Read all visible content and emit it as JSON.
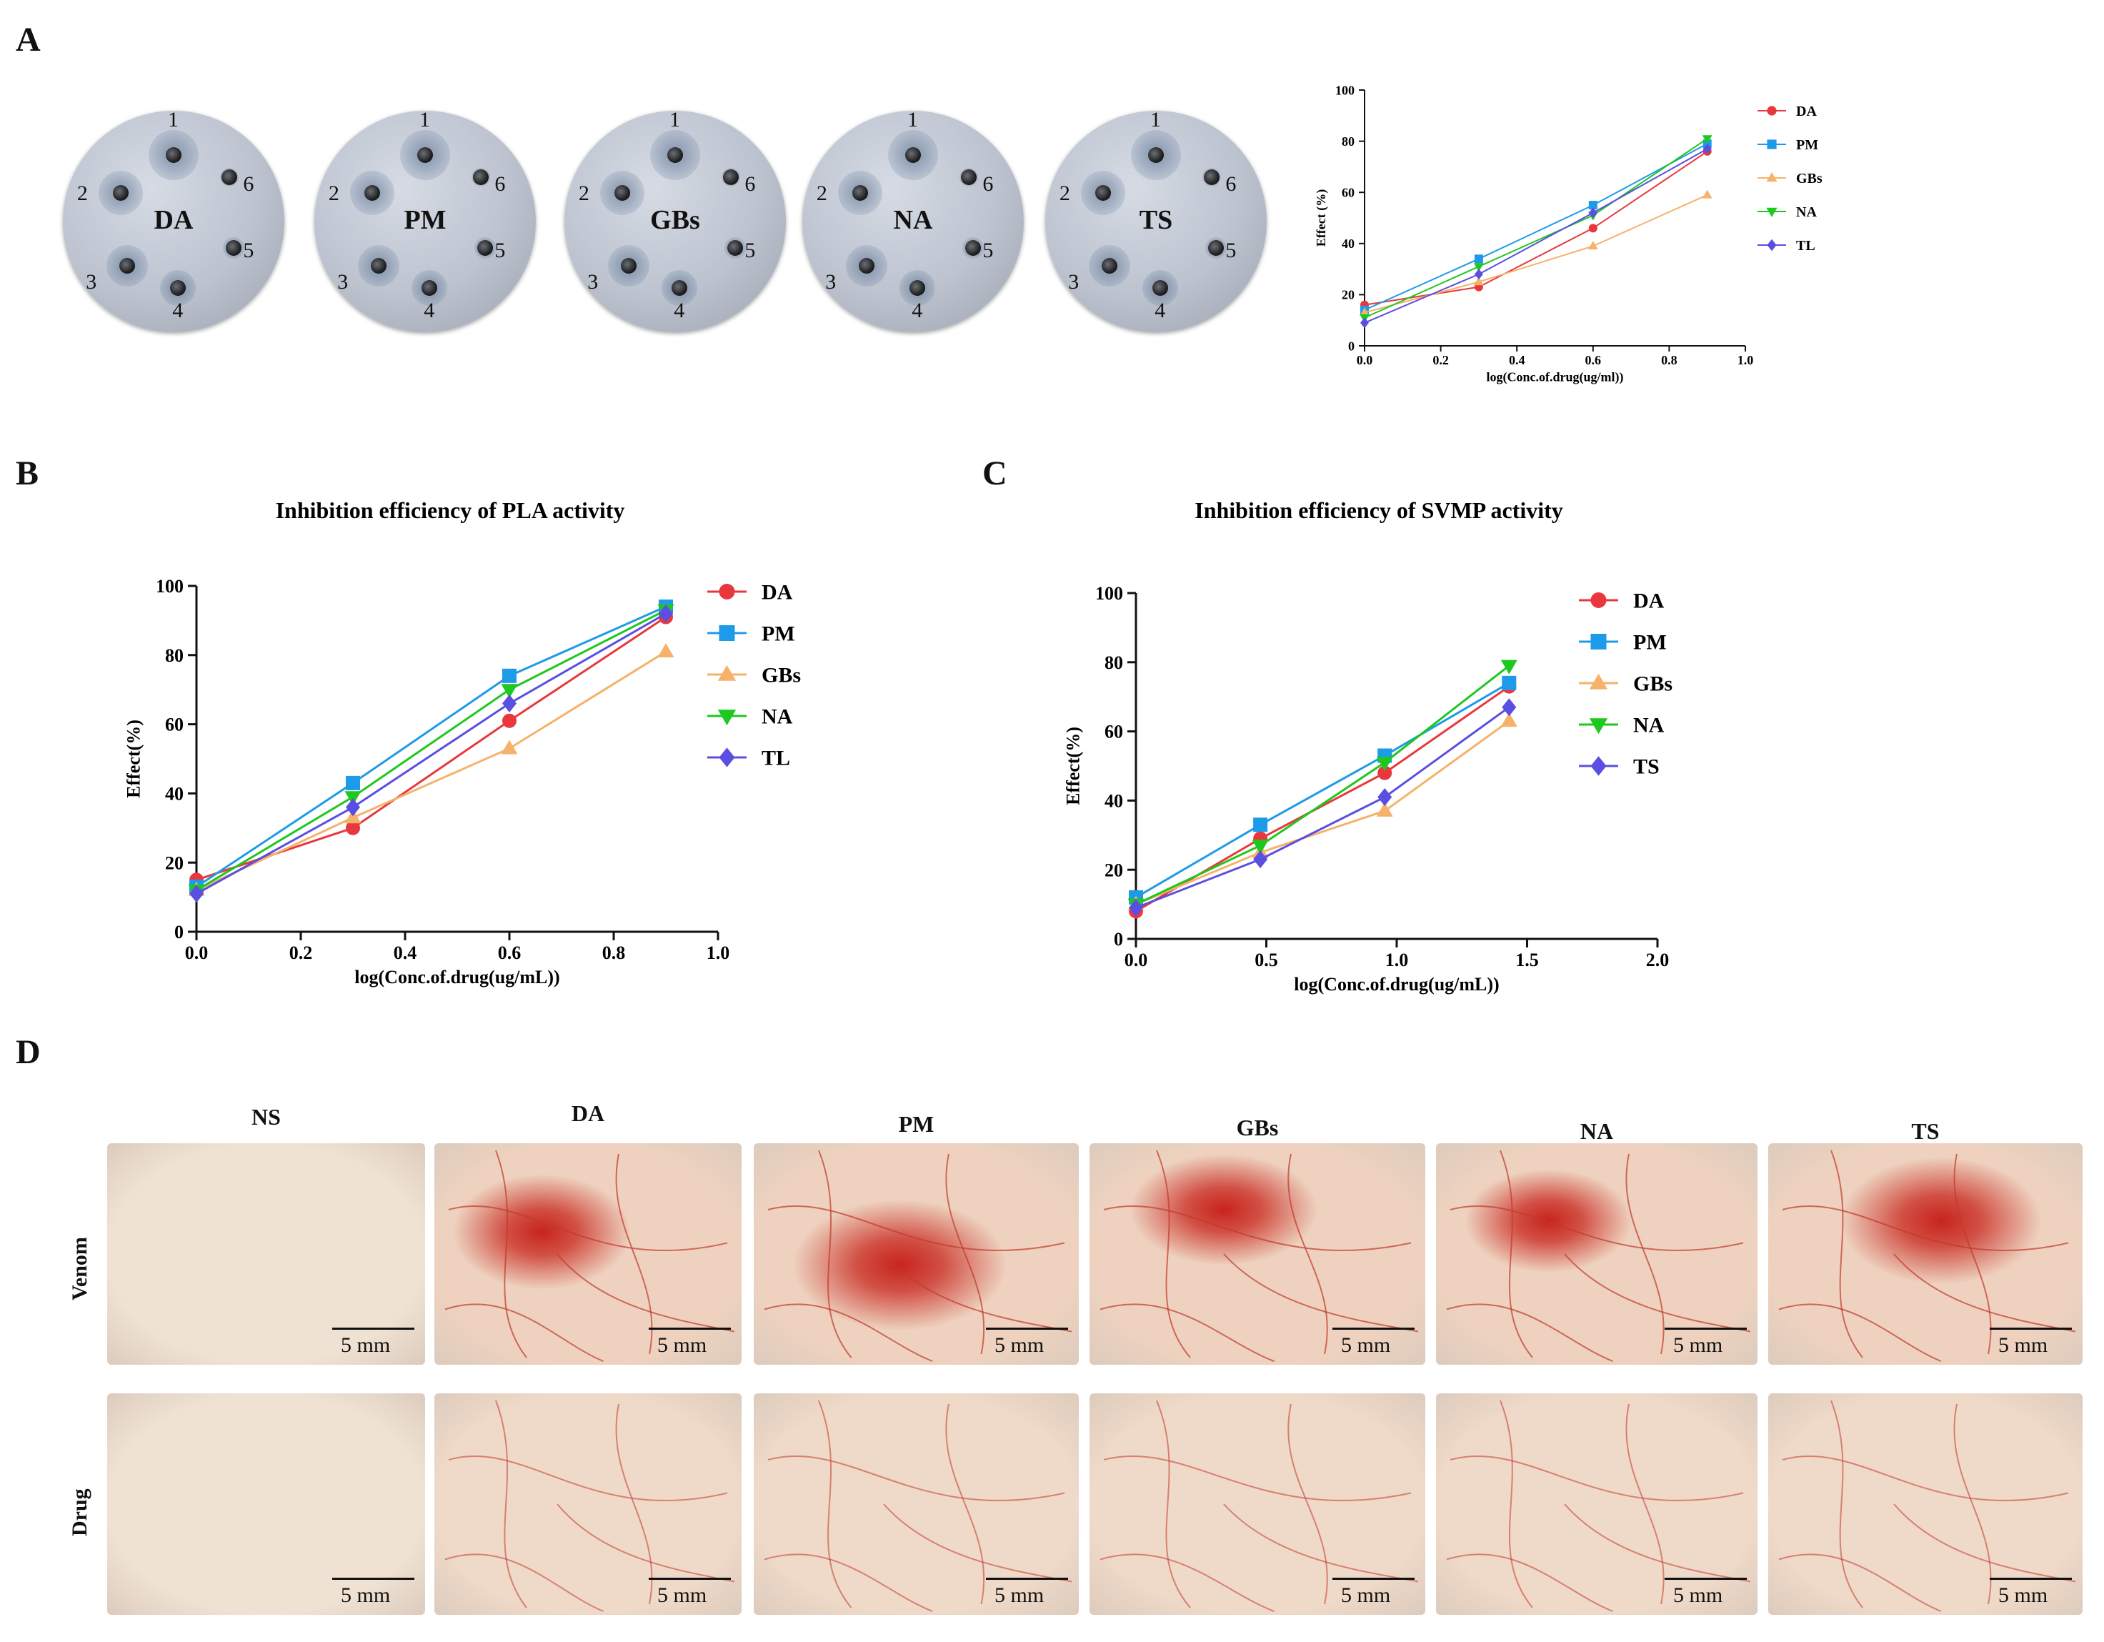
{
  "panels": {
    "a": "A",
    "b": "B",
    "c": "C",
    "d": "D"
  },
  "plates": [
    {
      "label": "DA",
      "wells": [
        "1",
        "2",
        "3",
        "4",
        "5",
        "6"
      ]
    },
    {
      "label": "PM",
      "wells": [
        "1",
        "2",
        "3",
        "4",
        "5",
        "6"
      ]
    },
    {
      "label": "GBs",
      "wells": [
        "1",
        "2",
        "3",
        "4",
        "5",
        "6"
      ]
    },
    {
      "label": "NA",
      "wells": [
        "1",
        "2",
        "3",
        "4",
        "5",
        "6"
      ]
    },
    {
      "label": "TS",
      "wells": [
        "1",
        "2",
        "3",
        "4",
        "5",
        "6"
      ]
    }
  ],
  "chart_data": [
    {
      "id": "A",
      "type": "line",
      "title": "",
      "xlabel": "log(Conc.of.drug(ug/ml))",
      "ylabel": "Effect (%)",
      "xlim": [
        0,
        1.0
      ],
      "ylim": [
        0,
        100
      ],
      "xticks": [
        "0.0",
        "0.2",
        "0.4",
        "0.6",
        "0.8",
        "1.0"
      ],
      "yticks": [
        "0",
        "20",
        "40",
        "60",
        "80",
        "100"
      ],
      "legend_position": "right",
      "x": [
        0,
        0.3,
        0.6,
        0.9
      ],
      "series": [
        {
          "name": "DA",
          "color": "#e8383d",
          "marker": "circle",
          "values": [
            16,
            23,
            46,
            76
          ]
        },
        {
          "name": "PM",
          "color": "#1e9be8",
          "marker": "square",
          "values": [
            14,
            34,
            55,
            79
          ]
        },
        {
          "name": "GBs",
          "color": "#f6b26b",
          "marker": "triangle",
          "values": [
            13,
            25,
            39,
            59
          ]
        },
        {
          "name": "NA",
          "color": "#1ec81e",
          "marker": "tri-down",
          "values": [
            11,
            31,
            51,
            81
          ]
        },
        {
          "name": "TL",
          "color": "#5a4fe0",
          "marker": "diamond",
          "values": [
            9,
            28,
            52,
            77
          ]
        }
      ]
    },
    {
      "id": "B",
      "type": "line",
      "title": "Inhibition efficiency of PLA activity",
      "xlabel": "log(Conc.of.drug(ug/mL))",
      "ylabel": "Effect(%)",
      "xlim": [
        0,
        1.0
      ],
      "ylim": [
        0,
        100
      ],
      "xticks": [
        "0.0",
        "0.2",
        "0.4",
        "0.6",
        "0.8",
        "1.0"
      ],
      "yticks": [
        "0",
        "20",
        "40",
        "60",
        "80",
        "100"
      ],
      "legend_position": "right",
      "x": [
        0,
        0.3,
        0.6,
        0.9
      ],
      "series": [
        {
          "name": "DA",
          "color": "#e8383d",
          "marker": "circle",
          "values": [
            15,
            30,
            61,
            91
          ]
        },
        {
          "name": "PM",
          "color": "#1e9be8",
          "marker": "square",
          "values": [
            13,
            43,
            74,
            94
          ]
        },
        {
          "name": "GBs",
          "color": "#f6b26b",
          "marker": "triangle",
          "values": [
            12,
            33,
            53,
            81
          ]
        },
        {
          "name": "NA",
          "color": "#1ec81e",
          "marker": "tri-down",
          "values": [
            12,
            39,
            70,
            93
          ]
        },
        {
          "name": "TL",
          "color": "#5a4fe0",
          "marker": "diamond",
          "values": [
            11,
            36,
            66,
            92
          ]
        }
      ]
    },
    {
      "id": "C",
      "type": "line",
      "title": "Inhibition efficiency of SVMP activity",
      "xlabel": "log(Conc.of.drug(ug/mL))",
      "ylabel": "Effect(%)",
      "xlim": [
        0,
        2.0
      ],
      "ylim": [
        0,
        100
      ],
      "xticks": [
        "0.0",
        "0.5",
        "1.0",
        "1.5",
        "2.0"
      ],
      "yticks": [
        "0",
        "20",
        "40",
        "60",
        "80",
        "100"
      ],
      "legend_position": "right",
      "x": [
        0,
        0.477,
        0.954,
        1.431
      ],
      "series": [
        {
          "name": "DA",
          "color": "#e8383d",
          "marker": "circle",
          "values": [
            8,
            29,
            48,
            73
          ]
        },
        {
          "name": "PM",
          "color": "#1e9be8",
          "marker": "square",
          "values": [
            12,
            33,
            53,
            74
          ]
        },
        {
          "name": "GBs",
          "color": "#f6b26b",
          "marker": "triangle",
          "values": [
            10,
            25,
            37,
            63
          ]
        },
        {
          "name": "NA",
          "color": "#1ec81e",
          "marker": "tri-down",
          "values": [
            10,
            27,
            51,
            79
          ]
        },
        {
          "name": "TS",
          "color": "#5a4fe0",
          "marker": "diamond",
          "values": [
            9,
            23,
            41,
            67
          ]
        }
      ]
    }
  ],
  "panel_d": {
    "columns": [
      "NS",
      "DA",
      "PM",
      "GBs",
      "NA",
      "TS"
    ],
    "rows": [
      "Venom",
      "Drug"
    ],
    "scale": "5 mm",
    "venom_lesion": [
      0,
      0.55,
      0.75,
      0.5,
      0.4,
      0.7
    ],
    "colors": {
      "skin": "#ead6c8",
      "vessel": "#c0392b",
      "lesion": "#c8241c",
      "background": "#e9ecee"
    }
  }
}
